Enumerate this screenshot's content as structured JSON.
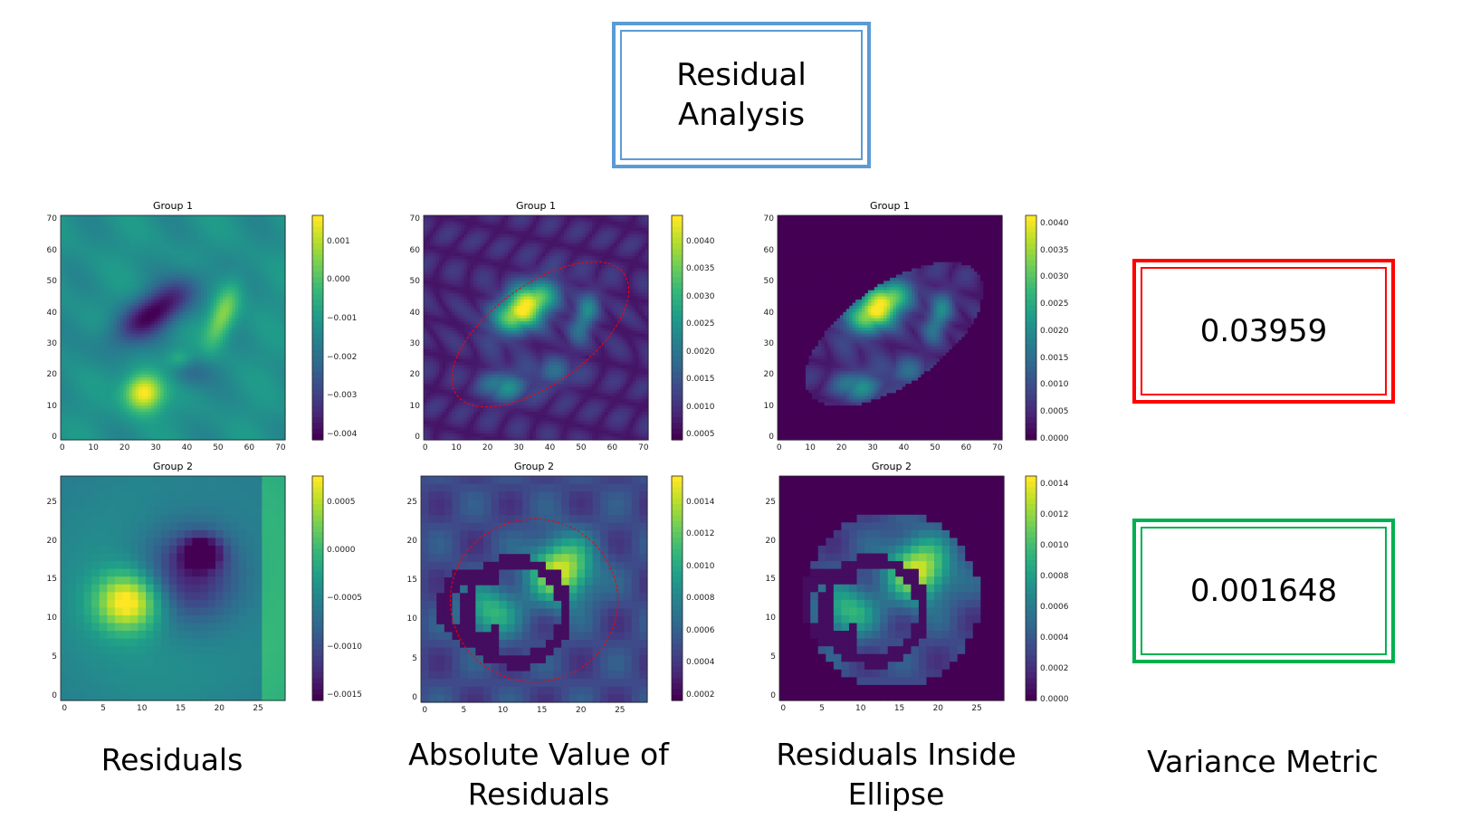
{
  "title": {
    "line1": "Residual",
    "line2": "Analysis"
  },
  "captions": {
    "residuals": "Residuals",
    "absolute_line1": "Absolute Value of",
    "absolute_line2": "Residuals",
    "inside_line1": "Residuals Inside",
    "inside_line2": "Ellipse",
    "variance": "Variance Metric"
  },
  "metrics": [
    {
      "value": "0.03959",
      "border_color": "#ff0000"
    },
    {
      "value": "0.001648",
      "border_color": "#00b050"
    }
  ],
  "colors": {
    "title_border": "#5b9bd5",
    "ellipse": "#ff0000"
  },
  "chart_data": [
    {
      "type": "heatmap",
      "title": "Group 1",
      "panel": "Residuals",
      "x_ticks": [
        "0",
        "10",
        "20",
        "30",
        "40",
        "50",
        "60",
        "70"
      ],
      "y_ticks": [
        "0",
        "10",
        "20",
        "30",
        "40",
        "50",
        "60",
        "70"
      ],
      "colorbar_ticks": [
        "0.001",
        "0.000",
        "−0.001",
        "−0.002",
        "−0.003",
        "−0.004"
      ],
      "colormap": "viridis"
    },
    {
      "type": "heatmap",
      "title": "Group 1",
      "panel": "Absolute Value of Residuals",
      "x_ticks": [
        "0",
        "10",
        "20",
        "30",
        "40",
        "50",
        "60",
        "70"
      ],
      "y_ticks": [
        "0",
        "10",
        "20",
        "30",
        "40",
        "50",
        "60",
        "70"
      ],
      "colorbar_ticks": [
        "0.0040",
        "0.0035",
        "0.0030",
        "0.0025",
        "0.0020",
        "0.0015",
        "0.0010",
        "0.0005"
      ],
      "colormap": "viridis"
    },
    {
      "type": "heatmap",
      "title": "Group 1",
      "panel": "Residuals Inside Ellipse",
      "x_ticks": [
        "0",
        "10",
        "20",
        "30",
        "40",
        "50",
        "60",
        "70"
      ],
      "y_ticks": [
        "0",
        "10",
        "20",
        "30",
        "40",
        "50",
        "60",
        "70"
      ],
      "colorbar_ticks": [
        "0.0040",
        "0.0035",
        "0.0030",
        "0.0025",
        "0.0020",
        "0.0015",
        "0.0010",
        "0.0005",
        "0.0000"
      ],
      "colormap": "viridis"
    },
    {
      "type": "heatmap",
      "title": "Group 2",
      "panel": "Residuals",
      "x_ticks": [
        "0",
        "5",
        "10",
        "15",
        "20",
        "25"
      ],
      "y_ticks": [
        "0",
        "5",
        "10",
        "15",
        "20",
        "25"
      ],
      "colorbar_ticks": [
        "0.0005",
        "0.0000",
        "−0.0005",
        "−0.0010",
        "−0.0015"
      ],
      "colormap": "viridis"
    },
    {
      "type": "heatmap",
      "title": "Group 2",
      "panel": "Absolute Value of Residuals",
      "x_ticks": [
        "0",
        "5",
        "10",
        "15",
        "20",
        "25"
      ],
      "y_ticks": [
        "0",
        "5",
        "10",
        "15",
        "20",
        "25"
      ],
      "colorbar_ticks": [
        "0.0014",
        "0.0012",
        "0.0010",
        "0.0008",
        "0.0006",
        "0.0004",
        "0.0002"
      ],
      "colormap": "viridis"
    },
    {
      "type": "heatmap",
      "title": "Group 2",
      "panel": "Residuals Inside Ellipse",
      "x_ticks": [
        "0",
        "5",
        "10",
        "15",
        "20",
        "25"
      ],
      "y_ticks": [
        "0",
        "5",
        "10",
        "15",
        "20",
        "25"
      ],
      "colorbar_ticks": [
        "0.0014",
        "0.0012",
        "0.0010",
        "0.0008",
        "0.0006",
        "0.0004",
        "0.0002",
        "0.0000"
      ],
      "colormap": "viridis"
    }
  ]
}
